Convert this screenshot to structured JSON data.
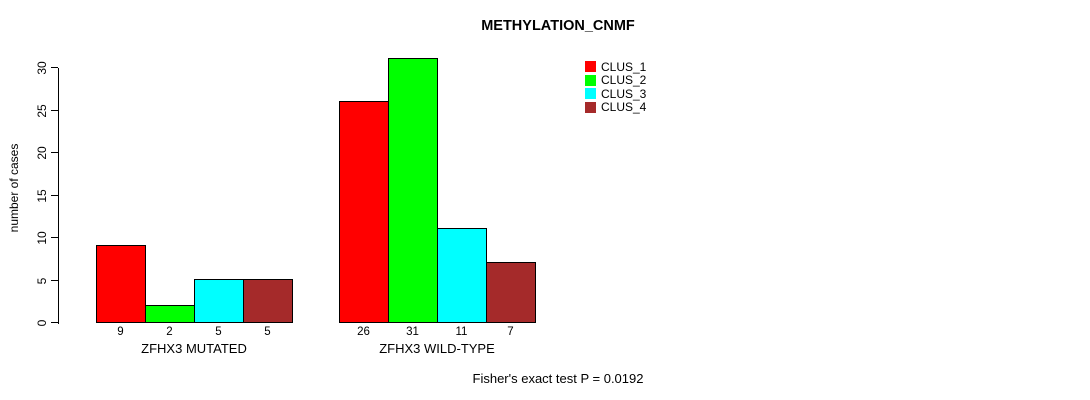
{
  "chart_data": {
    "type": "bar",
    "title": "METHYLATION_CNMF",
    "ylabel": "number of cases",
    "xlabel": "",
    "categories": [
      "ZFHX3 MUTATED",
      "ZFHX3 WILD-TYPE"
    ],
    "series": [
      {
        "name": "CLUS_1",
        "color": "#FF0000",
        "values": [
          9,
          26
        ]
      },
      {
        "name": "CLUS_2",
        "color": "#00FF00",
        "values": [
          2,
          31
        ]
      },
      {
        "name": "CLUS_3",
        "color": "#00FFFF",
        "values": [
          5,
          11
        ]
      },
      {
        "name": "CLUS_4",
        "color": "#A52A2A",
        "values": [
          5,
          7
        ]
      }
    ],
    "bar_value_labels": [
      [
        9,
        2,
        5,
        5
      ],
      [
        26,
        31,
        11,
        7
      ]
    ],
    "yticks": [
      0,
      5,
      10,
      15,
      20,
      25,
      30
    ],
    "ylim": [
      0,
      31
    ],
    "grid": false,
    "legend_position": "top-right",
    "legend_entries": [
      "CLUS_1",
      "CLUS_2",
      "CLUS_3",
      "CLUS_4"
    ],
    "annotation": "Fisher's exact test P = 0.0192"
  },
  "colors": {
    "clus_1": "#FF0000",
    "clus_2": "#00FF00",
    "clus_3": "#00FFFF",
    "clus_4": "#A52A2A",
    "axis": "#000000",
    "background": "#FFFFFF"
  }
}
